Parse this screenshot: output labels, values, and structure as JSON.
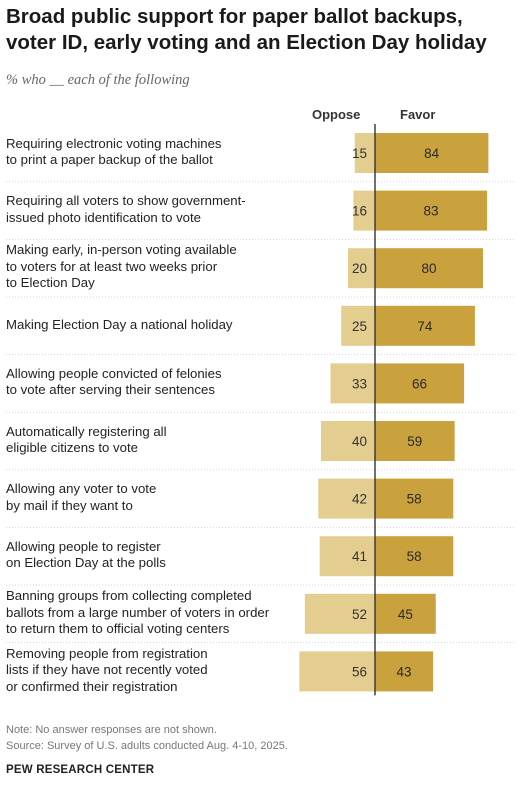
{
  "title": "Broad public support for paper ballot backups, voter ID, early voting and an Election Day holiday",
  "subtitle": "% who __ each of the following",
  "column_headers": {
    "oppose": "Oppose",
    "favor": "Favor"
  },
  "colors": {
    "oppose": "#e3cd8f",
    "favor": "#c9a23e",
    "divider": "#333333",
    "separator": "#d4d4d4"
  },
  "chart_data": {
    "type": "bar",
    "orientation": "horizontal-diverging",
    "categories": [
      "Requiring electronic voting machines to print a paper backup of the ballot",
      "Requiring all voters to show government-issued photo identification to vote",
      "Making early, in-person voting available to voters for at least two weeks prior to Election Day",
      "Making Election Day a national holiday",
      "Allowing people convicted of felonies to vote after serving their sentences",
      "Automatically registering all eligible citizens to vote",
      "Allowing any voter to vote by mail if they want to",
      "Allowing people to register on Election Day at the polls",
      "Banning groups from collecting completed ballots from a large number of voters in order to return them to official voting centers",
      "Removing people from registration lists if they have not recently voted or confirmed their registration"
    ],
    "label_lines": [
      [
        "Requiring electronic voting machines",
        "to print a paper backup of the ballot"
      ],
      [
        "Requiring all voters to show government-",
        "issued photo identification to vote"
      ],
      [
        "Making early, in-person voting available",
        "to voters for at least two weeks prior",
        "to Election Day"
      ],
      [
        "Making Election Day a national holiday"
      ],
      [
        "Allowing people convicted of felonies",
        "to vote after serving their sentences"
      ],
      [
        "Automatically registering all",
        "eligible citizens to vote"
      ],
      [
        "Allowing any voter to vote",
        "by mail if they want to"
      ],
      [
        "Allowing people to register",
        "on Election Day at the polls"
      ],
      [
        "Banning groups from collecting completed",
        "ballots from a large number of voters in order",
        "to return them to official voting centers"
      ],
      [
        "Removing people from registration",
        "lists if they have not recently voted",
        "or confirmed their registration"
      ]
    ],
    "series": [
      {
        "name": "Oppose",
        "values": [
          15,
          16,
          20,
          25,
          33,
          40,
          42,
          41,
          52,
          56
        ]
      },
      {
        "name": "Favor",
        "values": [
          84,
          83,
          80,
          74,
          66,
          59,
          58,
          58,
          45,
          43
        ]
      }
    ],
    "unit": "%"
  },
  "notes": {
    "note": "Note: No answer responses are not shown.",
    "source": "Source: Survey of U.S. adults conducted Aug. 4-10, 2025."
  },
  "brand": "PEW RESEARCH CENTER"
}
